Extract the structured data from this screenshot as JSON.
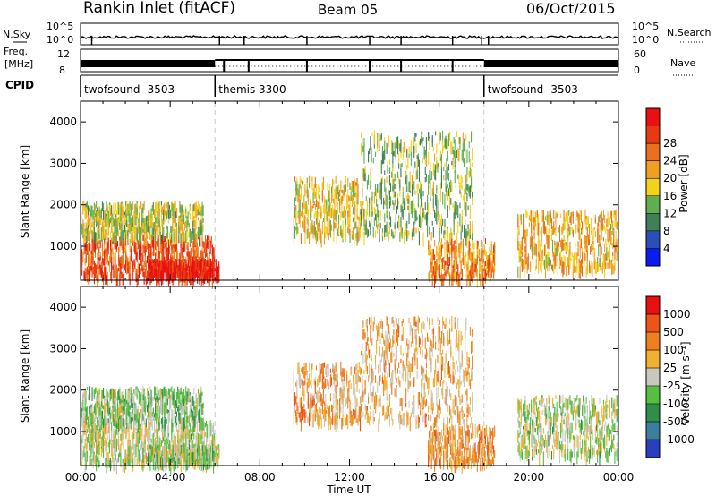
{
  "header": {
    "station": "Rankin Inlet (fitACF)",
    "beam": "Beam 05",
    "date": "06/Oct/2015"
  },
  "strips": {
    "nsky_label": "N.Sky",
    "nsky_ticks": [
      "10^5",
      "10^0"
    ],
    "nsearch_label": "N.Search",
    "nsearch_ticks": [
      "10^5",
      "10^0"
    ],
    "freq_label_1": "Freq.",
    "freq_label_2": "[MHz]",
    "freq_ticks": [
      "12",
      "8"
    ],
    "nave_label": "Nave",
    "nave_ticks": [
      "60",
      "0"
    ],
    "cpid_label": "CPID",
    "cpid_segments": [
      {
        "label": "twofsound -3503",
        "start_hour": 0,
        "end_hour": 6
      },
      {
        "label": "themis 3300",
        "start_hour": 6,
        "end_hour": 18
      },
      {
        "label": "twofsound -3503",
        "start_hour": 18,
        "end_hour": 24
      }
    ]
  },
  "axes": {
    "x_ticks": [
      "00:00",
      "04:00",
      "08:00",
      "12:00",
      "16:00",
      "20:00",
      "00:00"
    ],
    "x_label": "Time UT",
    "y_label": "Slant Range [km]",
    "y_ticks": [
      "1000",
      "2000",
      "3000",
      "4000"
    ]
  },
  "colorbars": {
    "power": {
      "label": "Power [dB]",
      "ticks": [
        "4",
        "8",
        "12",
        "16",
        "20",
        "24",
        "28"
      ],
      "colors": [
        "#0a1cf0",
        "#2b4fb8",
        "#3f7f5a",
        "#5fae4f",
        "#f2d21a",
        "#f0a020",
        "#e8701e",
        "#e83a12",
        "#e81010"
      ]
    },
    "velocity": {
      "label": "Velocity [m s⁻¹]",
      "ticks": [
        "1000",
        "500",
        "100",
        "25",
        "-25",
        "-100",
        "-500",
        "-1000"
      ],
      "colors": [
        "#2a3fc0",
        "#3d7ea0",
        "#2f8f4a",
        "#55c040",
        "#c8c8c0",
        "#f0b030",
        "#ee8020",
        "#ec5418",
        "#e81010"
      ]
    }
  },
  "chart_data": [
    {
      "type": "heatmap",
      "title": "Power",
      "xlabel": "Time UT",
      "ylabel": "Slant Range [km]",
      "xlim": [
        0,
        24
      ],
      "ylim": [
        180,
        4500
      ],
      "colorbar_label": "Power [dB]",
      "colorbar_range": [
        0,
        30
      ],
      "patches": [
        {
          "t0": 0.0,
          "t1": 6.0,
          "r0": 300,
          "r1": 1300,
          "value": 24
        },
        {
          "t0": 0.0,
          "t1": 5.5,
          "r0": 1300,
          "r1": 2100,
          "value": 14
        },
        {
          "t0": 3.0,
          "t1": 6.2,
          "r0": 350,
          "r1": 700,
          "value": 28
        },
        {
          "t0": 9.5,
          "t1": 12.5,
          "r0": 1300,
          "r1": 2700,
          "value": 16
        },
        {
          "t0": 12.5,
          "t1": 17.5,
          "r0": 1300,
          "r1": 3800,
          "value": 12
        },
        {
          "t0": 15.5,
          "t1": 18.5,
          "r0": 300,
          "r1": 1200,
          "value": 20
        },
        {
          "t0": 19.5,
          "t1": 24.0,
          "r0": 500,
          "r1": 1900,
          "value": 18
        }
      ]
    },
    {
      "type": "heatmap",
      "title": "Velocity",
      "xlabel": "Time UT",
      "ylabel": "Slant Range [km]",
      "xlim": [
        0,
        24
      ],
      "ylim": [
        180,
        4500
      ],
      "colorbar_label": "Velocity [m s⁻¹]",
      "colorbar_range": [
        -1000,
        1000
      ],
      "patches": [
        {
          "t0": 0.0,
          "t1": 6.0,
          "r0": 300,
          "r1": 1300,
          "value": 0
        },
        {
          "t0": 0.0,
          "t1": 5.5,
          "r0": 1300,
          "r1": 2100,
          "value": 150
        },
        {
          "t0": 3.0,
          "t1": 6.2,
          "r0": 350,
          "r1": 700,
          "value": 80
        },
        {
          "t0": 9.5,
          "t1": 12.5,
          "r0": 1300,
          "r1": 2700,
          "value": -300
        },
        {
          "t0": 12.5,
          "t1": 17.5,
          "r0": 1300,
          "r1": 3800,
          "value": -250
        },
        {
          "t0": 15.5,
          "t1": 18.5,
          "r0": 300,
          "r1": 1200,
          "value": -350
        },
        {
          "t0": 19.5,
          "t1": 24.0,
          "r0": 500,
          "r1": 1900,
          "value": 40
        }
      ]
    }
  ]
}
